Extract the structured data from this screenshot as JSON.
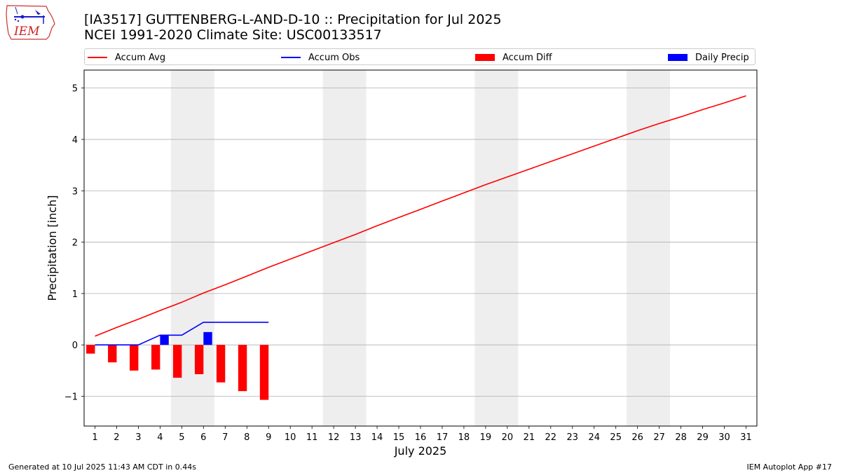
{
  "header": {
    "title_line1": "[IA3517] GUTTENBERG-L-AND-D-10 :: Precipitation for Jul 2025",
    "title_line2": "NCEI 1991-2020 Climate Site: USC00133517",
    "logo_text": "IEM"
  },
  "footer": {
    "generated": "Generated at 10 Jul 2025 11:43 AM CDT in 0.44s",
    "app": "IEM Autoplot App #17"
  },
  "colors": {
    "accum_avg": "#ff0000",
    "accum_obs": "#0000ff",
    "accum_diff": "#ff0000",
    "daily_precip": "#0000ff",
    "weekend_shade": "#eeeeee",
    "grid": "#b0b0b0"
  },
  "chart_data": {
    "type": "line",
    "title": "[IA3517] GUTTENBERG-L-AND-D-10 :: Precipitation for Jul 2025",
    "subtitle": "NCEI 1991-2020 Climate Site: USC00133517",
    "xlabel": "July 2025",
    "ylabel": "Precipitation [inch]",
    "xlim": [
      0.5,
      31.5
    ],
    "ylim": [
      -1.58,
      5.35
    ],
    "x_ticks": [
      1,
      2,
      3,
      4,
      5,
      6,
      7,
      8,
      9,
      10,
      11,
      12,
      13,
      14,
      15,
      16,
      17,
      18,
      19,
      20,
      21,
      22,
      23,
      24,
      25,
      26,
      27,
      28,
      29,
      30,
      31
    ],
    "y_ticks": [
      -1,
      0,
      1,
      2,
      3,
      4,
      5
    ],
    "y_tick_labels": [
      "−1",
      "0",
      "1",
      "2",
      "3",
      "4",
      "5"
    ],
    "grid": "y",
    "legend_position": "top",
    "weekend_shading": [
      [
        4.5,
        6.5
      ],
      [
        11.5,
        13.5
      ],
      [
        18.5,
        20.5
      ],
      [
        25.5,
        27.5
      ]
    ],
    "series": [
      {
        "name": "Accum Avg",
        "kind": "line",
        "x": [
          1,
          2,
          3,
          4,
          5,
          6,
          7,
          8,
          9,
          10,
          11,
          12,
          13,
          14,
          15,
          16,
          17,
          18,
          19,
          20,
          21,
          22,
          23,
          24,
          25,
          26,
          27,
          28,
          29,
          30,
          31
        ],
        "values": [
          0.17,
          0.34,
          0.5,
          0.67,
          0.83,
          1.01,
          1.17,
          1.34,
          1.51,
          1.67,
          1.83,
          1.99,
          2.15,
          2.32,
          2.48,
          2.64,
          2.8,
          2.96,
          3.12,
          3.27,
          3.42,
          3.57,
          3.72,
          3.87,
          4.02,
          4.17,
          4.31,
          4.44,
          4.58,
          4.71,
          4.85
        ]
      },
      {
        "name": "Accum Obs",
        "kind": "line",
        "x": [
          1,
          2,
          3,
          4,
          5,
          6,
          7,
          8,
          9
        ],
        "values": [
          0.0,
          0.0,
          0.0,
          0.19,
          0.19,
          0.44,
          0.44,
          0.44,
          0.44
        ]
      },
      {
        "name": "Accum Diff",
        "kind": "bar",
        "offset": -0.2,
        "x": [
          1,
          2,
          3,
          4,
          5,
          6,
          7,
          8,
          9
        ],
        "values": [
          -0.17,
          -0.34,
          -0.5,
          -0.48,
          -0.64,
          -0.57,
          -0.73,
          -0.9,
          -1.07
        ]
      },
      {
        "name": "Daily Precip",
        "kind": "bar",
        "offset": 0.2,
        "x": [
          1,
          2,
          3,
          4,
          5,
          6,
          7,
          8,
          9
        ],
        "values": [
          0,
          0,
          0,
          0.19,
          0,
          0.25,
          0,
          0,
          0
        ]
      }
    ]
  }
}
